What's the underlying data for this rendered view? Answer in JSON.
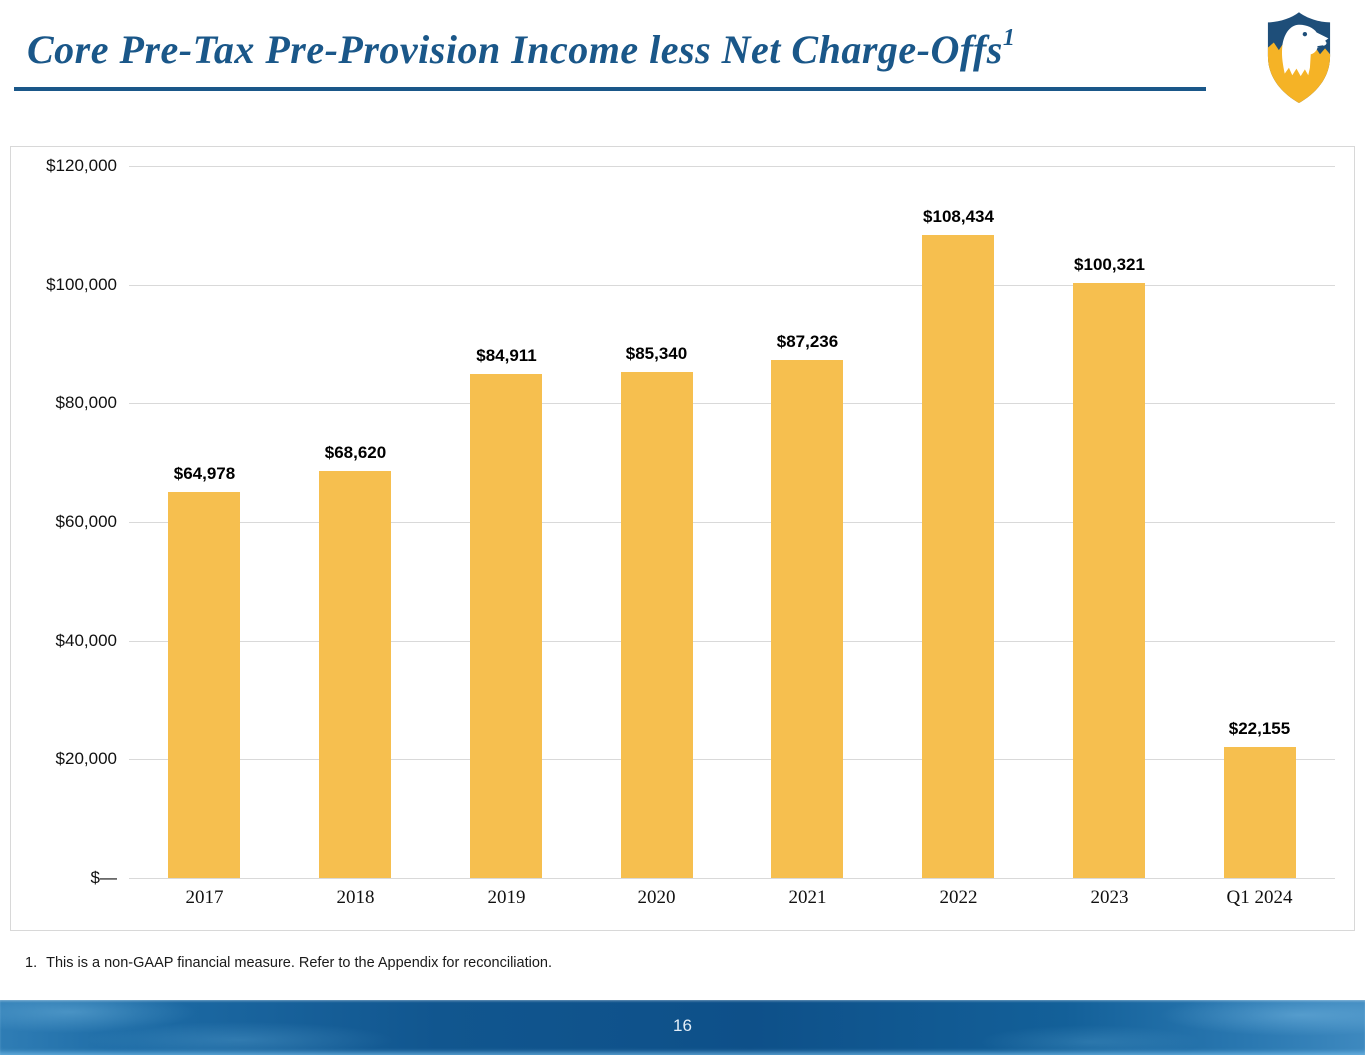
{
  "page": {
    "title": "Core Pre-Tax Pre-Provision Income less Net Charge-Offs",
    "title_superscript": "1",
    "footnote_number": "1.",
    "footnote_text": "This is a non-GAAP financial measure. Refer to the Appendix for reconciliation.",
    "page_number": "16"
  },
  "logo": {
    "name": "eagle-shield-logo",
    "colors": {
      "navy": "#1E4E79",
      "gold": "#F5B326",
      "white": "#FFFFFF"
    }
  },
  "chart_data": {
    "type": "bar",
    "title": "",
    "xlabel": "",
    "ylabel": "",
    "categories": [
      "2017",
      "2018",
      "2019",
      "2020",
      "2021",
      "2022",
      "2023",
      "Q1 2024"
    ],
    "values": [
      64978,
      68620,
      84911,
      85340,
      87236,
      108434,
      100321,
      22155
    ],
    "data_labels": [
      "$64,978",
      "$68,620",
      "$84,911",
      "$85,340",
      "$87,236",
      "$108,434",
      "$100,321",
      "$22,155"
    ],
    "y_ticks": [
      {
        "value": 120000,
        "label": "$120,000"
      },
      {
        "value": 100000,
        "label": "$100,000"
      },
      {
        "value": 80000,
        "label": "$80,000"
      },
      {
        "value": 60000,
        "label": "$60,000"
      },
      {
        "value": 40000,
        "label": "$40,000"
      },
      {
        "value": 20000,
        "label": "$20,000"
      },
      {
        "value": 0,
        "label": "$—"
      }
    ],
    "ylim": [
      0,
      120000
    ],
    "grid": true,
    "legend": false,
    "bar_color": "#F6BF4F",
    "gridline_color": "#D9D9D9"
  }
}
